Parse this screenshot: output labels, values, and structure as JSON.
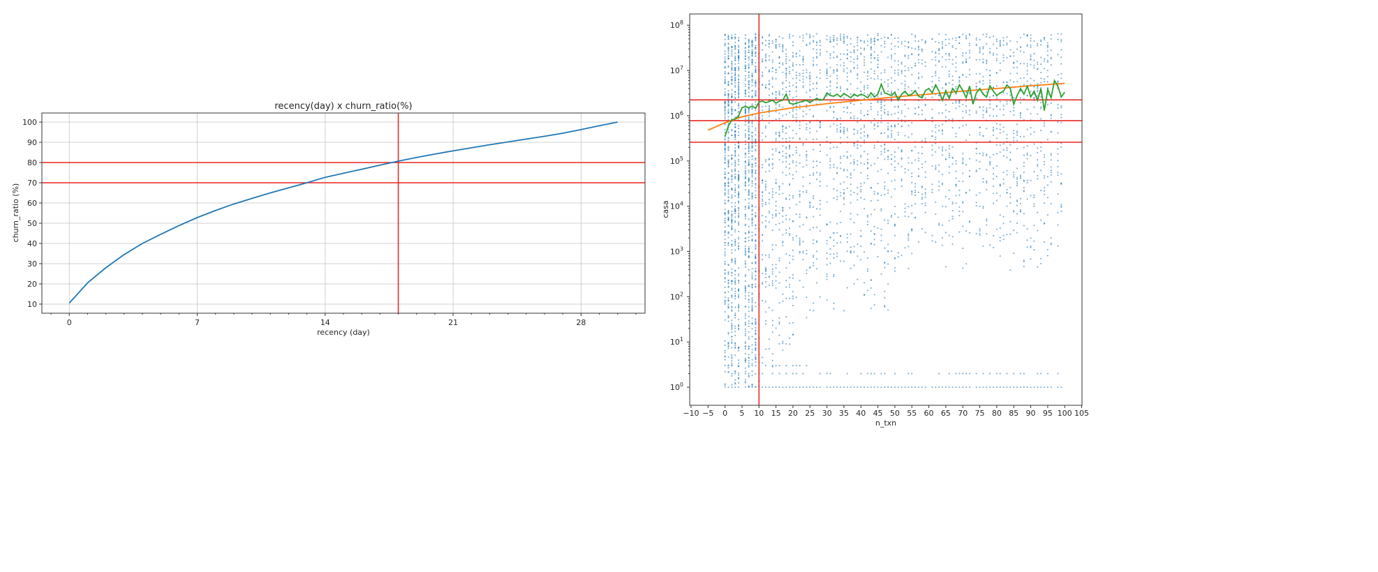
{
  "chart_data": [
    {
      "type": "line",
      "title": "recency(day) x churn_ratio(%)",
      "xlabel": "recency (day)",
      "ylabel": "churn_ratio (%)",
      "xlim": [
        -1.5,
        31.5
      ],
      "ylim": [
        5.5,
        104.5
      ],
      "xticks": [
        0,
        7,
        14,
        21,
        28
      ],
      "yticks": [
        10,
        20,
        30,
        40,
        50,
        60,
        70,
        80,
        90,
        100
      ],
      "grid": true,
      "series": [
        {
          "name": "churn_ratio",
          "color": "#1f77b4",
          "x": [
            0,
            1,
            2,
            3,
            4,
            5,
            6,
            7,
            8,
            9,
            10,
            11,
            12,
            13,
            14,
            15,
            16,
            17,
            18,
            19,
            20,
            21,
            22,
            23,
            24,
            25,
            26,
            27,
            28,
            29,
            30
          ],
          "y": [
            10.5,
            20.5,
            28,
            34.5,
            40,
            44.5,
            48.8,
            52.8,
            56.3,
            59.5,
            62.3,
            65,
            67.5,
            70,
            72.7,
            74.7,
            76.7,
            78.7,
            80.7,
            82.5,
            84.2,
            85.8,
            87.3,
            88.8,
            90.2,
            91.6,
            93,
            94.5,
            96.3,
            98.2,
            100
          ]
        }
      ],
      "reference_lines": {
        "color": "#e8231d",
        "hlines": [
          80,
          70
        ],
        "vlines": [
          18
        ]
      }
    },
    {
      "type": "scatter",
      "title": "",
      "xlabel": "n_txn",
      "ylabel": "casa",
      "xlim": [
        -10.4,
        105.1
      ],
      "ylim_log10": [
        -0.4,
        8.25
      ],
      "yscale": "log",
      "xticks": [
        -10,
        -5,
        0,
        5,
        10,
        15,
        20,
        25,
        30,
        35,
        40,
        45,
        50,
        55,
        60,
        65,
        70,
        75,
        80,
        85,
        90,
        95,
        100,
        105
      ],
      "yticks": [
        {
          "exp": 0,
          "base": "10",
          "power": "0"
        },
        {
          "exp": 1,
          "base": "10",
          "power": "1"
        },
        {
          "exp": 2,
          "base": "10",
          "power": "2"
        },
        {
          "exp": 3,
          "base": "10",
          "power": "3"
        },
        {
          "exp": 4,
          "base": "10",
          "power": "4"
        },
        {
          "exp": 5,
          "base": "10",
          "power": "5"
        },
        {
          "exp": 6,
          "base": "10",
          "power": "6"
        },
        {
          "exp": 7,
          "base": "10",
          "power": "7"
        },
        {
          "exp": 8,
          "base": "10",
          "power": "8"
        }
      ],
      "grid": false,
      "scatter": {
        "name": "customers",
        "color": "#1f77b4",
        "x_range": [
          0,
          100
        ],
        "y_max": 65000000,
        "y_min": 1,
        "density": [
          {
            "x_from": 0,
            "x_to": 9,
            "points_per_x": 90,
            "low_log10": 0
          },
          {
            "x_from": 10,
            "x_to": 20,
            "points_per_x": 45,
            "low_log10": 0.3
          },
          {
            "x_from": 21,
            "x_to": 50,
            "points_per_x": 32,
            "low_log10": 1.5
          },
          {
            "x_from": 51,
            "x_to": 100,
            "points_per_x": 24,
            "low_log10": 2.5
          }
        ],
        "floor_value": 1
      },
      "series": [
        {
          "name": "median",
          "color": "#2ca02c",
          "x_start": 0,
          "y_millions": [
            0.35,
            0.6,
            0.8,
            0.85,
            1.0,
            1.5,
            1.6,
            1.5,
            1.65,
            1.45,
            2.0,
            2.1,
            1.95,
            2.05,
            2.2,
            1.9,
            2.1,
            2.2,
            3.0,
            1.9,
            1.8,
            1.9,
            2.0,
            2.1,
            2.2,
            1.95,
            2.2,
            2.4,
            2.2,
            2.3,
            3.2,
            2.8,
            2.7,
            3.0,
            2.6,
            3.1,
            2.8,
            2.5,
            3.0,
            2.7,
            3.0,
            2.8,
            2.5,
            3.2,
            2.6,
            3.0,
            5.0,
            3.2,
            3.0,
            2.8,
            3.3,
            2.2,
            3.0,
            3.5,
            2.8,
            3.0,
            3.6,
            2.7,
            2.5,
            3.6,
            4.0,
            3.2,
            4.8,
            3.5,
            2.2,
            3.6,
            2.4,
            4.0,
            3.2,
            4.8,
            3.6,
            2.5,
            4.5,
            1.8,
            3.2,
            4.0,
            3.0,
            2.6,
            4.6,
            3.5,
            2.8,
            3.2,
            3.5,
            4.8,
            4.0,
            1.8,
            2.8,
            4.0,
            3.0,
            4.5,
            2.6,
            3.5,
            2.2,
            4.0,
            1.3,
            3.8,
            2.5,
            6.0,
            4.5,
            2.6,
            3.3
          ]
        },
        {
          "name": "fit",
          "color": "#ff7f0e",
          "x": [
            -5,
            0,
            5,
            10,
            20,
            30,
            40,
            50,
            60,
            70,
            80,
            90,
            100
          ],
          "y_millions": [
            0.48,
            0.7,
            0.95,
            1.15,
            1.5,
            1.85,
            2.2,
            2.6,
            3.0,
            3.5,
            4.0,
            4.6,
            5.2
          ]
        }
      ],
      "reference_lines": {
        "color": "#e8231d",
        "hlines": [
          2240000,
          780000,
          260000
        ],
        "vlines": [
          10
        ]
      }
    }
  ]
}
